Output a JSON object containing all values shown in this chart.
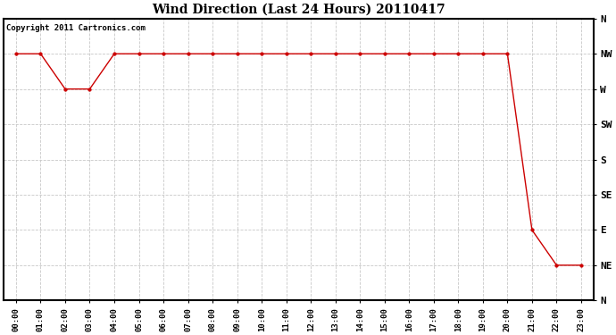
{
  "title": "Wind Direction (Last 24 Hours) 20110417",
  "copyright": "Copyright 2011 Cartronics.com",
  "background_color": "#ffffff",
  "line_color": "#cc0000",
  "grid_color": "#c8c8c8",
  "hours": [
    0,
    1,
    2,
    3,
    4,
    5,
    6,
    7,
    8,
    9,
    10,
    11,
    12,
    13,
    14,
    15,
    16,
    17,
    18,
    19,
    20,
    21,
    22,
    23
  ],
  "directions_deg": [
    315,
    315,
    270,
    270,
    315,
    315,
    315,
    315,
    315,
    315,
    315,
    315,
    315,
    315,
    315,
    315,
    315,
    315,
    315,
    315,
    315,
    90,
    45,
    45
  ],
  "yticks_deg": [
    360,
    315,
    270,
    225,
    180,
    135,
    90,
    45,
    0
  ],
  "ytick_labels": [
    "N",
    "NW",
    "W",
    "SW",
    "S",
    "SE",
    "E",
    "NE",
    "N"
  ],
  "ymin": 0,
  "ymax": 360,
  "xlabel_fontsize": 6.5,
  "ylabel_fontsize": 8,
  "title_fontsize": 10,
  "copyright_fontsize": 6.5
}
